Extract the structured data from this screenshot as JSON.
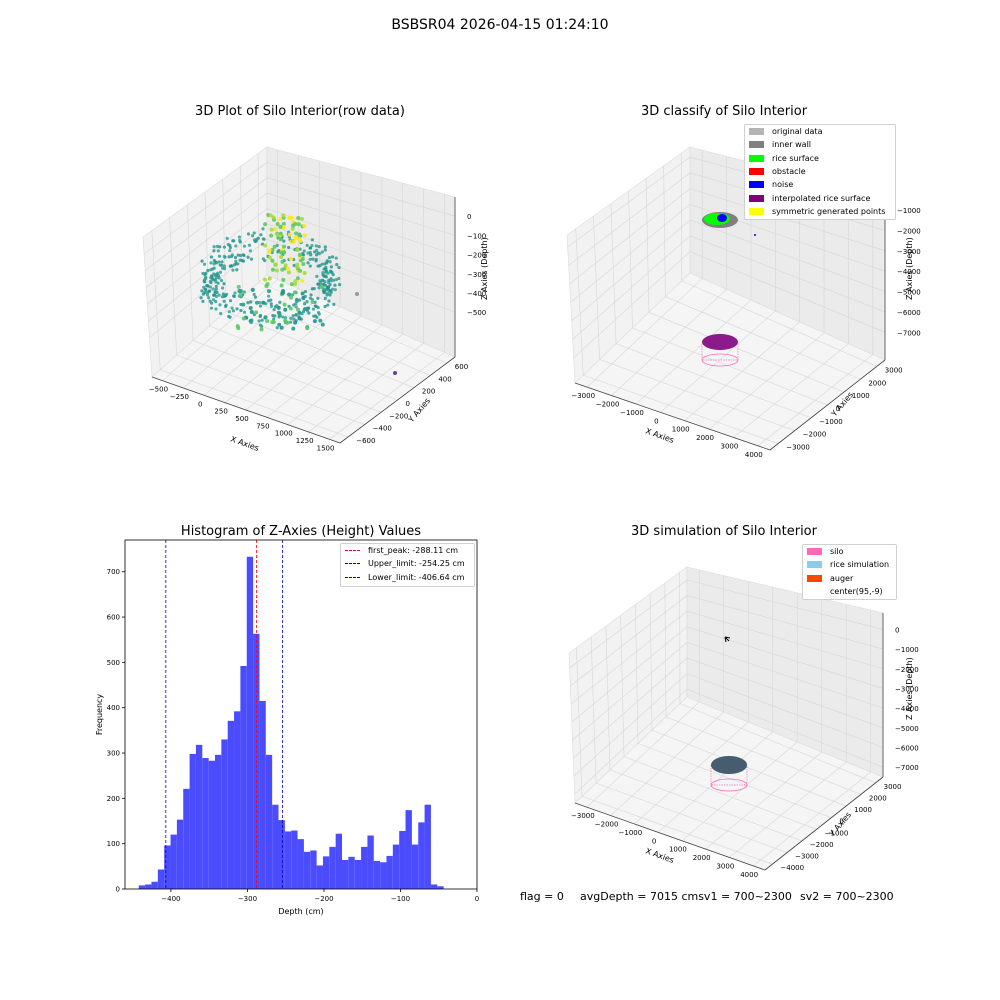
{
  "page": {
    "title": "BSBSR04 2026-04-15 01:24:10"
  },
  "colors": {
    "grey_light": "#b4b4b4",
    "inner_wall": "#808080",
    "rice_surface": "#00ff00",
    "obstacle": "#ff0000",
    "noise": "#0000ff",
    "interpolated": "#800080",
    "symmetric": "#ffff00",
    "silo": "#ff69b4",
    "rice_sim": "#87ceeb",
    "auger": "#ff4500",
    "hist_bar": "#4c4cff",
    "peak_line": "#ff0000",
    "limit_line": "#0000cc"
  },
  "plot_raw": {
    "title": "3D Plot of Silo Interior(row data)",
    "xlabel": "X Axies",
    "ylabel": "Y Axies",
    "zlabel": "Z Axies (Depth)",
    "xticks": [
      "−500",
      "−250",
      "0",
      "250",
      "500",
      "750",
      "1000",
      "1250",
      "1500"
    ],
    "yticks": [
      "−600",
      "−400",
      "−200",
      "0",
      "200",
      "400",
      "600"
    ],
    "zticks": [
      "0",
      "−100",
      "−200",
      "−300",
      "−400",
      "−500"
    ],
    "colormap": "viridis"
  },
  "plot_classify": {
    "title": "3D classify of Silo Interior",
    "xlabel": "X Axies",
    "ylabel": "Y Axies",
    "zlabel": "Z Axies (Depth)",
    "xticks": [
      "−3000",
      "−2000",
      "−1000",
      "0",
      "1000",
      "2000",
      "3000",
      "4000"
    ],
    "yticks": [
      "−3000",
      "−2000",
      "−1000",
      "0",
      "1000",
      "2000",
      "3000"
    ],
    "zticks": [
      "−1000",
      "−2000",
      "−3000",
      "−4000",
      "−5000",
      "−6000",
      "−7000"
    ],
    "legend": [
      {
        "label": "original data",
        "color": "#b4b4b4"
      },
      {
        "label": "inner wall",
        "color": "#808080"
      },
      {
        "label": "rice surface",
        "color": "#00ff00"
      },
      {
        "label": "obstacle",
        "color": "#ff0000"
      },
      {
        "label": "noise",
        "color": "#0000ff"
      },
      {
        "label": "interpolated rice surface",
        "color": "#800080"
      },
      {
        "label": "symmetric generated points",
        "color": "#ffff00"
      }
    ]
  },
  "plot_sim": {
    "title": "3D simulation of Silo Interior",
    "xlabel": "X Axies",
    "ylabel": "Y Axies",
    "zlabel": "Z Axies (Depth)",
    "xticks": [
      "−3000",
      "−2000",
      "−1000",
      "0",
      "1000",
      "2000",
      "3000",
      "4000"
    ],
    "yticks": [
      "−4000",
      "−3000",
      "−2000",
      "−1000",
      "0",
      "1000",
      "2000",
      "3000"
    ],
    "zticks": [
      "0",
      "−1000",
      "−2000",
      "−3000",
      "−4000",
      "−5000",
      "−6000",
      "−7000"
    ],
    "legend": [
      {
        "label": "silo",
        "color": "#ff69b4"
      },
      {
        "label": "rice simulation",
        "color": "#87ceeb"
      },
      {
        "label": "auger",
        "color": "#ff4500"
      },
      {
        "label": "center(95,-9)",
        "color": ""
      }
    ]
  },
  "status": {
    "flag": "flag = 0",
    "avg": "avgDepth = 7015 cmsv1 = 700~2300",
    "sv2": "sv2 = 700~2300"
  },
  "chart_data": [
    {
      "type": "bar",
      "title": "Histogram of Z-Axies (Height) Values",
      "xlabel": "Depth (cm)",
      "ylabel": "Frequency",
      "xlim": [
        -460,
        0
      ],
      "ylim": [
        0,
        770
      ],
      "xticks": [
        -400,
        -300,
        -200,
        -100,
        0
      ],
      "yticks": [
        0,
        100,
        200,
        300,
        400,
        500,
        600,
        700
      ],
      "bin_width": 8.3,
      "bin_start": -442,
      "values": [
        8,
        10,
        16,
        43,
        96,
        120,
        153,
        221,
        298,
        318,
        289,
        283,
        296,
        330,
        371,
        392,
        492,
        733,
        563,
        415,
        296,
        186,
        152,
        127,
        129,
        110,
        82,
        85,
        52,
        72,
        93,
        122,
        64,
        71,
        64,
        93,
        118,
        62,
        59,
        73,
        98,
        128,
        174,
        98,
        147,
        186,
        10,
        6
      ],
      "reference_lines": [
        {
          "name": "first_peak: -288.11 cm",
          "x": -288.11,
          "color": "#ff0000"
        },
        {
          "name": "Upper_limit: -254.25 cm",
          "x": -254.25,
          "color": "#0000cc"
        },
        {
          "name": "Lower_limit: -406.64 cm",
          "x": -406.64,
          "color": "#0000cc"
        }
      ],
      "legend_position": "top-right"
    }
  ]
}
